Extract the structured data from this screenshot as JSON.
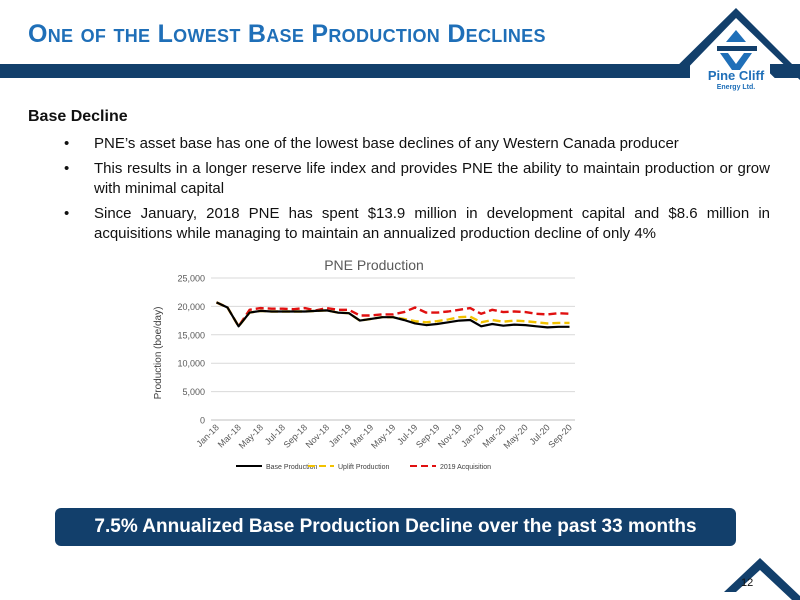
{
  "header": {
    "title": "One of the Lowest Base Production Declines",
    "logo_text_main": "Pine Cliff",
    "logo_text_sub": "Energy Ltd."
  },
  "content": {
    "heading": "Base Decline",
    "bullet_glyph": "•",
    "bullets": [
      "PNE’s asset base has one of the lowest base declines of any Western Canada producer",
      "This results in a longer reserve life index and provides PNE the ability to maintain production or grow with minimal capital",
      "Since January, 2018 PNE has spent $13.9 million in development capital and $8.6 million in acquisitions while managing to maintain an annualized production decline of only 4%"
    ]
  },
  "banner": {
    "text": "7.5% Annualized Base Production Decline over the past 33 months"
  },
  "footer": {
    "page_number": "12"
  },
  "colors": {
    "navy": "#123f6b",
    "title_blue": "#1f6fb8",
    "base": "#000000",
    "uplift": "#f2c200",
    "acquisition": "#e01010",
    "grid": "#d9d9d9"
  },
  "chart_data": {
    "type": "line",
    "title": "PNE Production",
    "ylabel": "Production (boe/day)",
    "xlabel": "",
    "ylim": [
      0,
      25000
    ],
    "yticks": [
      0,
      5000,
      10000,
      15000,
      20000,
      25000
    ],
    "ytick_labels": [
      "0",
      "5,000",
      "10,000",
      "15,000",
      "20,000",
      "25,000"
    ],
    "grid": "horizontal",
    "legend_position": "bottom",
    "x": [
      "Jan-18",
      "Feb-18",
      "Mar-18",
      "Apr-18",
      "May-18",
      "Jun-18",
      "Jul-18",
      "Aug-18",
      "Sep-18",
      "Oct-18",
      "Nov-18",
      "Dec-18",
      "Jan-19",
      "Feb-19",
      "Mar-19",
      "Apr-19",
      "May-19",
      "Jun-19",
      "Jul-19",
      "Aug-19",
      "Sep-19",
      "Oct-19",
      "Nov-19",
      "Dec-19",
      "Jan-20",
      "Feb-20",
      "Mar-20",
      "Apr-20",
      "May-20",
      "Jun-20",
      "Jul-20",
      "Aug-20",
      "Sep-20"
    ],
    "x_tick_labels": [
      "Jan-18",
      "Mar-18",
      "May-18",
      "Jul-18",
      "Sep-18",
      "Nov-18",
      "Jan-19",
      "Mar-19",
      "May-19",
      "Jul-19",
      "Sep-19",
      "Nov-19",
      "Jan-20",
      "Mar-20",
      "May-20",
      "Jul-20",
      "Sep-20"
    ],
    "series": [
      {
        "name": "Base Production",
        "style": "solid",
        "values": [
          20700,
          19800,
          16500,
          18900,
          19200,
          19100,
          19100,
          19100,
          19100,
          19200,
          19300,
          18900,
          18800,
          17500,
          17800,
          18100,
          18100,
          17600,
          17000,
          16700,
          16900,
          17200,
          17500,
          17600,
          16500,
          16900,
          16600,
          16800,
          16700,
          16500,
          16300,
          16400,
          16400
        ]
      },
      {
        "name": "Uplift Production",
        "style": "dashed",
        "values": [
          20700,
          19800,
          16500,
          18900,
          19200,
          19100,
          19100,
          19100,
          19100,
          19200,
          19300,
          18900,
          18800,
          17500,
          17800,
          18100,
          18100,
          17800,
          17400,
          17200,
          17400,
          17700,
          18100,
          18200,
          17200,
          17600,
          17300,
          17500,
          17400,
          17200,
          17000,
          17100,
          17100
        ]
      },
      {
        "name": "2019 Acquisition",
        "style": "dashed",
        "values": [
          20700,
          19800,
          16500,
          19400,
          19700,
          19600,
          19600,
          19500,
          19700,
          19300,
          19700,
          19400,
          19400,
          18400,
          18400,
          18600,
          18600,
          19000,
          19800,
          18900,
          18900,
          19100,
          19400,
          19700,
          18700,
          19400,
          19000,
          19100,
          19000,
          18700,
          18600,
          18800,
          18700
        ]
      }
    ]
  }
}
